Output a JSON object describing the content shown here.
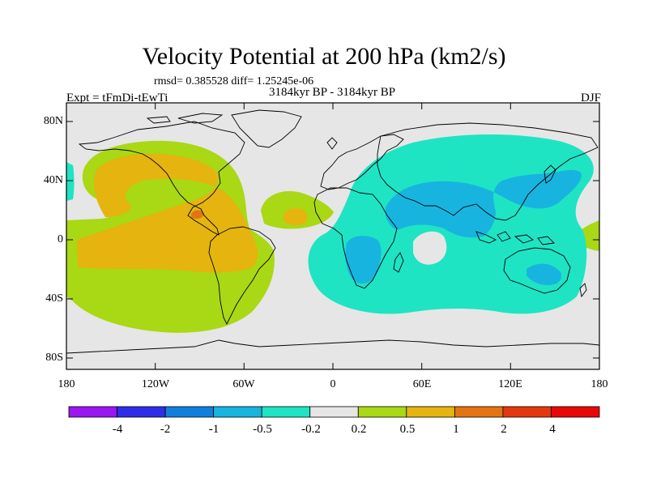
{
  "title": "Velocity Potential at 200 hPa (km2/s)",
  "stats": "rmsd= 0.385528 diff= 1.25245e-06",
  "subtitle": "3184kyr BP - 3184kyr BP",
  "experiment": "Expt = tFmDi-tEwTi",
  "season": "DJF",
  "lat_labels": [
    "80N",
    "40N",
    "0",
    "40S",
    "80S"
  ],
  "lon_labels": [
    "180",
    "120W",
    "60W",
    "0",
    "60E",
    "120E",
    "180"
  ],
  "colorbar": {
    "colors": [
      "#9b16f0",
      "#2e2ee8",
      "#127fdc",
      "#18b4e0",
      "#1ee4c4",
      "#e6e6e6",
      "#a9d815",
      "#e5b40e",
      "#e27512",
      "#e4380e",
      "#e80808"
    ],
    "labels": [
      "-4",
      "-2",
      "-1",
      "-0.5",
      "-0.2",
      "0.2",
      "0.5",
      "1",
      "2",
      "4"
    ]
  },
  "map": {
    "background": "#e6e6e6",
    "positive_colors": [
      "#a9d815",
      "#e5b40e",
      "#e27512"
    ],
    "negative_colors": [
      "#1ee4c4",
      "#18b4e0"
    ]
  }
}
